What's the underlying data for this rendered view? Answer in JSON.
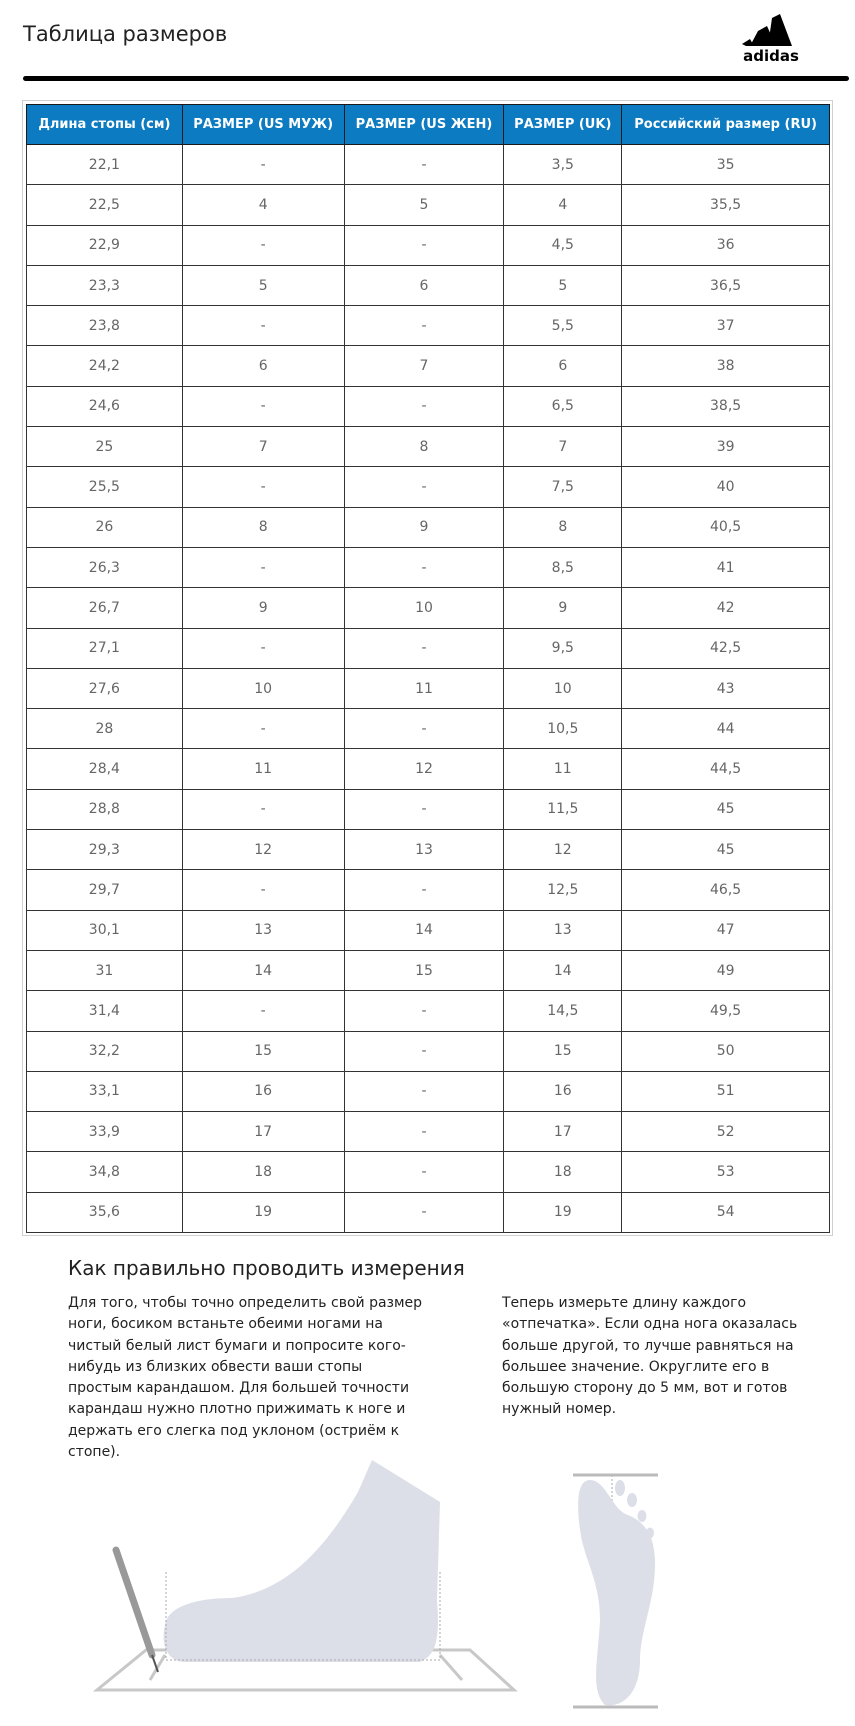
{
  "header": {
    "title": "Таблица размеров",
    "logo_text": "adidas"
  },
  "table": {
    "headers": [
      "Длина стопы (см)",
      "РАЗМЕР (US МУЖ)",
      "РАЗМЕР (US ЖЕН)",
      "РАЗМЕР (UK)",
      "Российский размер (RU)"
    ],
    "rows": [
      [
        "22,1",
        "-",
        "-",
        "3,5",
        "35"
      ],
      [
        "22,5",
        "4",
        "5",
        "4",
        "35,5"
      ],
      [
        "22,9",
        "-",
        "-",
        "4,5",
        "36"
      ],
      [
        "23,3",
        "5",
        "6",
        "5",
        "36,5"
      ],
      [
        "23,8",
        "-",
        "-",
        "5,5",
        "37"
      ],
      [
        "24,2",
        "6",
        "7",
        "6",
        "38"
      ],
      [
        "24,6",
        "-",
        "-",
        "6,5",
        "38,5"
      ],
      [
        "25",
        "7",
        "8",
        "7",
        "39"
      ],
      [
        "25,5",
        "-",
        "-",
        "7,5",
        "40"
      ],
      [
        "26",
        "8",
        "9",
        "8",
        "40,5"
      ],
      [
        "26,3",
        "-",
        "-",
        "8,5",
        "41"
      ],
      [
        "26,7",
        "9",
        "10",
        "9",
        "42"
      ],
      [
        "27,1",
        "-",
        "-",
        "9,5",
        "42,5"
      ],
      [
        "27,6",
        "10",
        "11",
        "10",
        "43"
      ],
      [
        "28",
        "-",
        "-",
        "10,5",
        "44"
      ],
      [
        "28,4",
        "11",
        "12",
        "11",
        "44,5"
      ],
      [
        "28,8",
        "-",
        "-",
        "11,5",
        "45"
      ],
      [
        "29,3",
        "12",
        "13",
        "12",
        "45"
      ],
      [
        "29,7",
        "-",
        "-",
        "12,5",
        "46,5"
      ],
      [
        "30,1",
        "13",
        "14",
        "13",
        "47"
      ],
      [
        "31",
        "14",
        "15",
        "14",
        "49"
      ],
      [
        "31,4",
        "-",
        "-",
        "14,5",
        "49,5"
      ],
      [
        "32,2",
        "15",
        "-",
        "15",
        "50"
      ],
      [
        "33,1",
        "16",
        "-",
        "16",
        "51"
      ],
      [
        "33,9",
        "17",
        "-",
        "17",
        "52"
      ],
      [
        "34,8",
        "18",
        "-",
        "18",
        "53"
      ],
      [
        "35,6",
        "19",
        "-",
        "19",
        "54"
      ]
    ]
  },
  "instructions": {
    "title": "Как правильно проводить измерения",
    "paragraph_1": "Для того, чтобы точно определить свой размер ноги, босиком встаньте обеими ногами на чистый белый лист бумаги и попросите кого-нибудь из близких обвести ваши стопы простым карандашом. Для большей точности карандаш нужно плотно прижимать к ноге и держать его слегка под уклоном (остриём к стопе).",
    "paragraph_2": "Теперь измерьте длину каждого «отпечатка». Если одна нога оказалась больше другой, то лучше равняться на большее значение. Округлите его в большую сторону до 5 мм, вот и готов нужный номер."
  },
  "colors": {
    "header_bg": "#0c7bc1",
    "foot": "#dcdfe8",
    "lines": "#c8c8c8"
  }
}
